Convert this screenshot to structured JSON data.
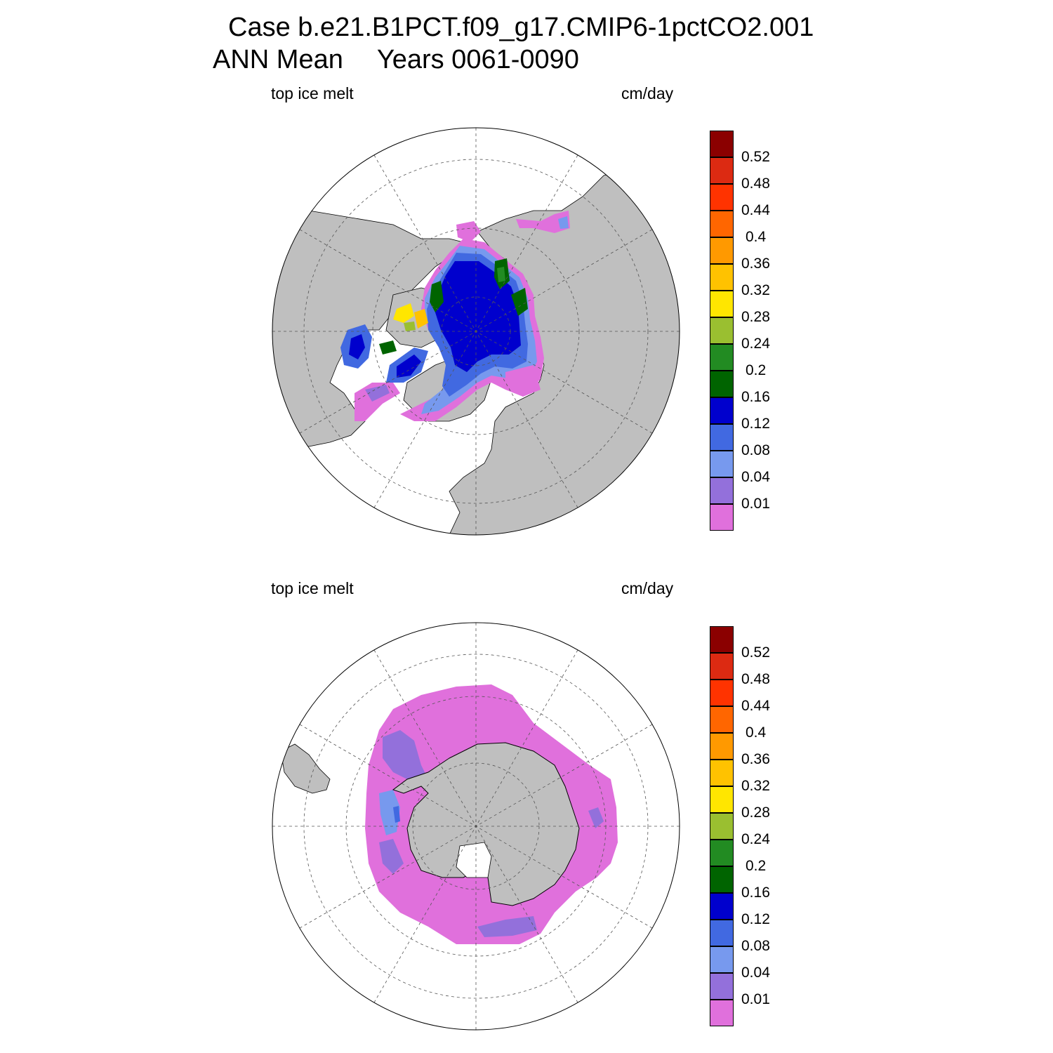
{
  "title": {
    "line1": "Case b.e21.B1PCT.f09_g17.CMIP6-1pctCO2.001",
    "line2_left": "ANN Mean",
    "line2_right": "Years 0061-0090"
  },
  "panels": [
    {
      "id": "arctic",
      "left_label": "top ice melt",
      "right_label": "cm/day",
      "hemisphere": "north"
    },
    {
      "id": "antarctic",
      "left_label": "top ice melt",
      "right_label": "cm/day",
      "hemisphere": "south"
    }
  ],
  "colorbar": {
    "levels": [
      "0.52",
      "0.48",
      "0.44",
      "0.4",
      "0.36",
      "0.32",
      "0.28",
      "0.24",
      "0.2",
      "0.16",
      "0.12",
      "0.08",
      "0.04",
      "0.01"
    ],
    "colors": [
      "#8b0000",
      "#dc2a12",
      "#ff3300",
      "#ff6600",
      "#ff9900",
      "#ffc200",
      "#ffe600",
      "#9abf30",
      "#228b22",
      "#006400",
      "#0000cd",
      "#4169e1",
      "#7799ee",
      "#9370db",
      "#e070dc"
    ]
  },
  "map_colors": {
    "land": "#bfbfbf",
    "ocean_open": "#ffffff",
    "grid": "#555555"
  }
}
